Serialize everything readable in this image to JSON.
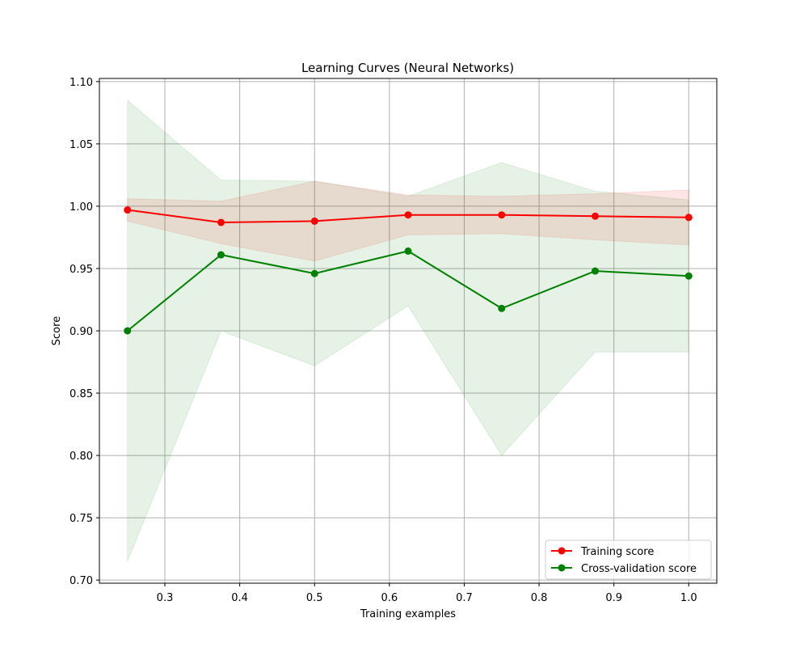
{
  "chart_data": {
    "type": "line",
    "title": "Learning Curves (Neural Networks)",
    "xlabel": "Training examples",
    "ylabel": "Score",
    "xlim": [
      0.2125,
      1.0375
    ],
    "ylim": [
      0.6975,
      1.1025
    ],
    "x_ticks": [
      0.3,
      0.4,
      0.5,
      0.6,
      0.7,
      0.8,
      0.9,
      1.0
    ],
    "x_tick_labels": [
      "0.3",
      "0.4",
      "0.5",
      "0.6",
      "0.7",
      "0.8",
      "0.9",
      "1.0"
    ],
    "y_ticks": [
      0.7,
      0.75,
      0.8,
      0.85,
      0.9,
      0.95,
      1.0,
      1.05,
      1.1
    ],
    "y_tick_labels": [
      "0.70",
      "0.75",
      "0.80",
      "0.85",
      "0.90",
      "0.95",
      "1.00",
      "1.05",
      "1.10"
    ],
    "grid": true,
    "legend_position": "lower-right",
    "x": [
      0.25,
      0.375,
      0.5,
      0.625,
      0.75,
      0.875,
      1.0
    ],
    "series": [
      {
        "name": "Training score",
        "color": "#ff0000",
        "band_color": "#ff0000",
        "values": [
          0.997,
          0.987,
          0.988,
          0.993,
          0.993,
          0.992,
          0.991
        ],
        "band_upper": [
          1.006,
          1.004,
          1.02,
          1.009,
          1.008,
          1.01,
          1.013
        ],
        "band_lower": [
          0.988,
          0.97,
          0.956,
          0.977,
          0.978,
          0.973,
          0.969
        ]
      },
      {
        "name": "Cross-validation score",
        "color": "#008000",
        "band_color": "#008000",
        "values": [
          0.9,
          0.961,
          0.946,
          0.964,
          0.918,
          0.948,
          0.944
        ],
        "band_upper": [
          1.085,
          1.021,
          1.02,
          1.008,
          1.035,
          1.012,
          1.005
        ],
        "band_lower": [
          0.715,
          0.9,
          0.872,
          0.92,
          0.8,
          0.883,
          0.883
        ]
      }
    ]
  }
}
